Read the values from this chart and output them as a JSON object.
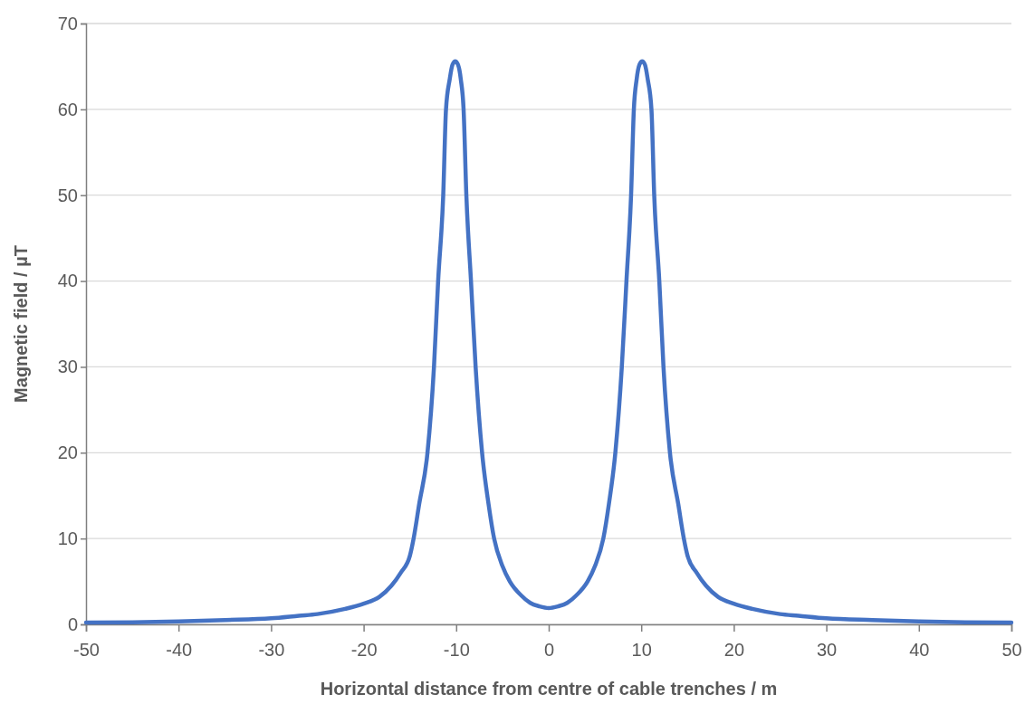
{
  "chart_data": {
    "type": "line",
    "xlabel": "Horizontal distance from centre of cable trenches / m",
    "ylabel": "Magnetic field / µT",
    "xlim": [
      -50,
      50
    ],
    "xticks": [
      -50,
      -40,
      -30,
      -20,
      -10,
      0,
      10,
      20,
      30,
      40,
      50
    ],
    "ylim": [
      0,
      70
    ],
    "yticks": [
      0,
      10,
      20,
      30,
      40,
      50,
      60,
      70
    ],
    "grid": "y",
    "marker": "none",
    "line_style": "solid",
    "series": [
      {
        "color": "#4472c4",
        "x": [
          -50,
          -45,
          -40,
          -35,
          -30,
          -27,
          -25,
          -22,
          -20,
          -18.3,
          -17,
          -16,
          -15,
          -14.6,
          -14,
          -13.1,
          -12.4,
          -11.95,
          -11.4,
          -11.1,
          -10.7,
          -10.4,
          -10.1,
          -9.8,
          -9.5,
          -9.2,
          -8.9,
          -8.4,
          -7.9,
          -7.2,
          -6.5,
          -5.9,
          -5,
          -4.2,
          -3,
          -2,
          -1,
          0,
          1,
          2,
          3,
          4.2,
          5,
          5.9,
          6.5,
          7.2,
          7.9,
          8.4,
          8.9,
          9.2,
          9.5,
          9.8,
          10.1,
          10.4,
          10.7,
          11.1,
          11.4,
          11.95,
          12.4,
          13.1,
          14,
          14.6,
          15,
          16,
          17,
          18.3,
          20,
          22,
          25,
          27,
          30,
          35,
          40,
          45,
          50
        ],
        "values": [
          0.2,
          0.25,
          0.35,
          0.5,
          0.7,
          1,
          1.2,
          1.8,
          2.4,
          3.2,
          4.5,
          6,
          8,
          10,
          14,
          20,
          30,
          40,
          50,
          60,
          63.5,
          65.2,
          65.6,
          65.2,
          63.5,
          60,
          50,
          40,
          30,
          20,
          14,
          10,
          6.8,
          5,
          3.4,
          2.5,
          2.1,
          1.9,
          2.1,
          2.5,
          3.4,
          5,
          6.8,
          10,
          14,
          20,
          30,
          40,
          50,
          60,
          63.5,
          65.2,
          65.6,
          65.2,
          63.5,
          60,
          50,
          40,
          30,
          20,
          14,
          10,
          8,
          6,
          4.5,
          3.2,
          2.4,
          1.8,
          1.2,
          1,
          0.7,
          0.5,
          0.35,
          0.25,
          0.2
        ]
      }
    ]
  }
}
